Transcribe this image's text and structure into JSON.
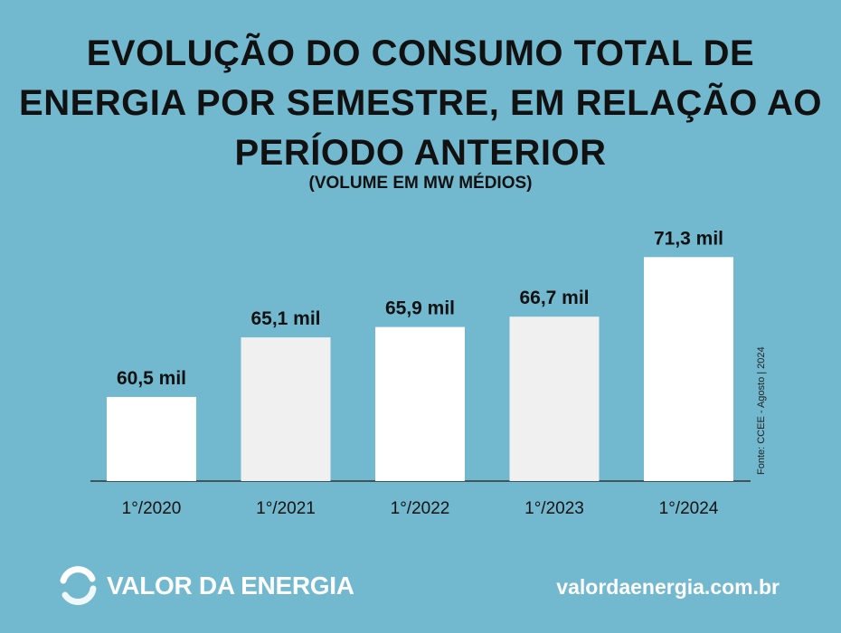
{
  "chart_data": {
    "type": "bar",
    "title": "EVOLUÇÃO DO CONSUMO TOTAL DE ENERGIA POR SEMESTRE, EM RELAÇÃO AO PERÍODO ANTERIOR",
    "subtitle": "(VOLUME EM MW MÉDIOS)",
    "categories": [
      "1°/2020",
      "1°/2021",
      "1°/2022",
      "1°/2023",
      "1°/2024"
    ],
    "values": [
      60.5,
      65.1,
      65.9,
      66.7,
      71.3
    ],
    "data_labels": [
      "60,5 mil",
      "65,1 mil",
      "65,9 mil",
      "66,7 mil",
      "71,3 mil"
    ],
    "ylim": [
      54,
      73
    ],
    "grid": false,
    "bar_colors": [
      "#ffffff",
      "#f0f0f0",
      "#ffffff",
      "#f0f0f0",
      "#ffffff"
    ]
  },
  "source": "Fonte: CCEE - Agosto | 2024",
  "brand": {
    "name": "VALOR DA ENERGIA",
    "website": "valordaenergia.com.br"
  },
  "colors": {
    "background": "#72b9cf",
    "text": "#111111"
  }
}
